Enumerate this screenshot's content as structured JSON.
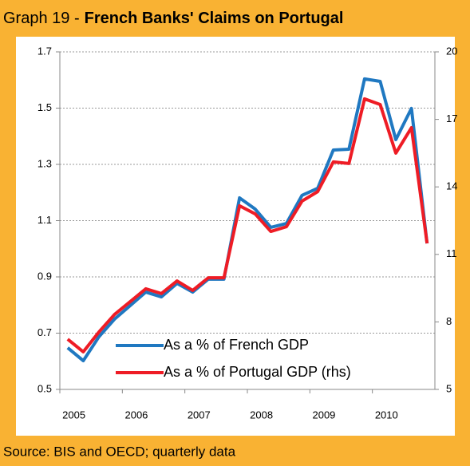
{
  "chart_data": {
    "type": "line",
    "title_parts": [
      "Graph 19 -",
      "French Banks' Claims on Portugal"
    ],
    "source": "Source: BIS and OECD; quarterly  data",
    "categories": [
      "2005",
      null,
      null,
      null,
      "2006",
      null,
      null,
      null,
      "2007",
      null,
      null,
      null,
      "2008",
      null,
      null,
      null,
      "2009",
      null,
      null,
      null,
      "2010",
      null,
      null,
      null
    ],
    "series": [
      {
        "name": "As a % of French GDP",
        "color": "#1f78c1",
        "axis": "y",
        "values": [
          0.648,
          0.602,
          0.687,
          0.75,
          0.798,
          0.846,
          0.829,
          0.877,
          0.846,
          0.892,
          0.892,
          1.181,
          1.141,
          1.076,
          1.09,
          1.19,
          1.215,
          1.351,
          1.354,
          1.604,
          1.595,
          1.388,
          1.499,
          1.019
        ]
      },
      {
        "name": "As a % of Portugal GDP (rhs)",
        "color": "#ee1c25",
        "axis": "y2",
        "values": [
          7.23,
          6.67,
          7.55,
          8.33,
          8.9,
          9.47,
          9.26,
          9.82,
          9.4,
          9.96,
          9.96,
          13.16,
          12.8,
          12.02,
          12.23,
          13.37,
          13.79,
          15.11,
          15.04,
          17.91,
          17.66,
          15.5,
          16.63,
          11.49
        ]
      }
    ],
    "ylim": [
      0.5,
      1.7
    ],
    "yticks": [
      0.5,
      0.7,
      0.9,
      1.1,
      1.3,
      1.5,
      1.7
    ],
    "y2lim": [
      5,
      20
    ],
    "y2ticks": [
      5,
      8,
      11,
      14,
      17,
      20
    ],
    "grid": true
  }
}
